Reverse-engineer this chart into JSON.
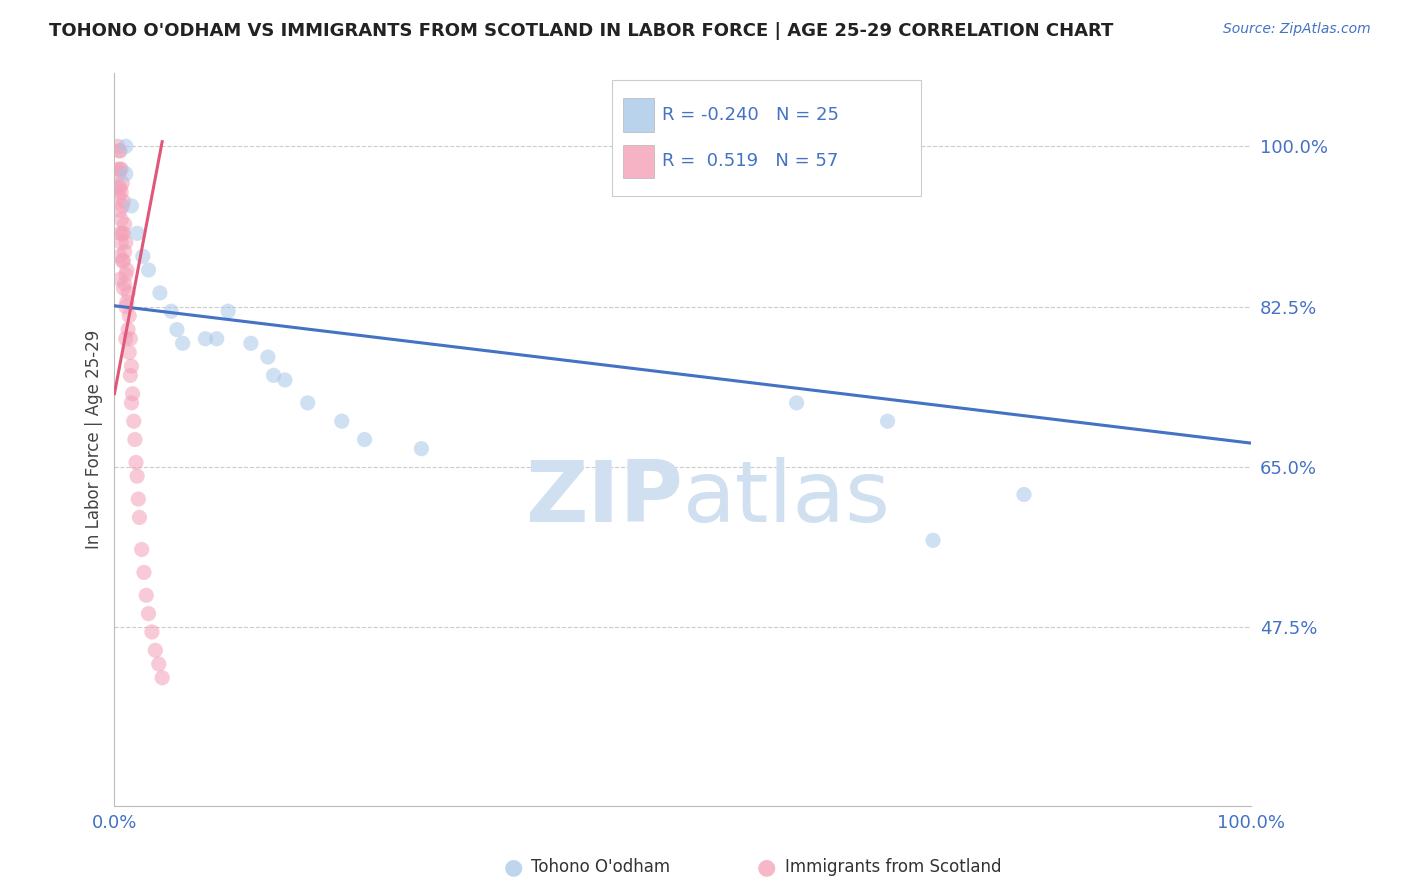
{
  "title": "TOHONO O'ODHAM VS IMMIGRANTS FROM SCOTLAND IN LABOR FORCE | AGE 25-29 CORRELATION CHART",
  "source_text": "Source: ZipAtlas.com",
  "ylabel": "In Labor Force | Age 25-29",
  "xlim": [
    0.0,
    1.0
  ],
  "ylim": [
    0.28,
    1.08
  ],
  "ytick_positions": [
    0.475,
    0.65,
    0.825,
    1.0
  ],
  "ytick_labels": [
    "47.5%",
    "65.0%",
    "82.5%",
    "100.0%"
  ],
  "xtick_positions": [
    0.0,
    0.1,
    0.2,
    0.3,
    0.4,
    0.5,
    0.6,
    0.7,
    0.8,
    0.9,
    1.0
  ],
  "xtick_labels": [
    "0.0%",
    "",
    "",
    "",
    "",
    "",
    "",
    "",
    "",
    "",
    "100.0%"
  ],
  "r_blue": -0.24,
  "n_blue": 25,
  "r_pink": 0.519,
  "n_pink": 57,
  "blue_color": "#a8c8e8",
  "pink_color": "#f4a0b8",
  "blue_line_color": "#4472c4",
  "pink_line_color": "#e05878",
  "watermark_color": "#d0e0f0",
  "grid_color": "#cccccc",
  "title_color": "#222222",
  "tick_color": "#4472c4",
  "blue_scatter_x": [
    0.01,
    0.01,
    0.015,
    0.02,
    0.025,
    0.03,
    0.04,
    0.05,
    0.055,
    0.06,
    0.08,
    0.09,
    0.1,
    0.12,
    0.135,
    0.14,
    0.15,
    0.17,
    0.2,
    0.22,
    0.27,
    0.6,
    0.68,
    0.8,
    0.72
  ],
  "blue_scatter_y": [
    1.0,
    0.97,
    0.935,
    0.905,
    0.88,
    0.865,
    0.84,
    0.82,
    0.8,
    0.785,
    0.79,
    0.79,
    0.82,
    0.785,
    0.77,
    0.75,
    0.745,
    0.72,
    0.7,
    0.68,
    0.67,
    0.72,
    0.7,
    0.62,
    0.57
  ],
  "pink_scatter_x": [
    0.003,
    0.003,
    0.003,
    0.004,
    0.004,
    0.004,
    0.005,
    0.005,
    0.005,
    0.005,
    0.005,
    0.005,
    0.005,
    0.006,
    0.006,
    0.006,
    0.006,
    0.007,
    0.007,
    0.007,
    0.007,
    0.008,
    0.008,
    0.008,
    0.008,
    0.009,
    0.009,
    0.009,
    0.01,
    0.01,
    0.01,
    0.01,
    0.011,
    0.011,
    0.012,
    0.012,
    0.013,
    0.013,
    0.014,
    0.014,
    0.015,
    0.015,
    0.016,
    0.017,
    0.018,
    0.019,
    0.02,
    0.021,
    0.022,
    0.024,
    0.026,
    0.028,
    0.03,
    0.033,
    0.036,
    0.039,
    0.042
  ],
  "pink_scatter_y": [
    1.0,
    0.975,
    0.955,
    0.995,
    0.97,
    0.945,
    0.995,
    0.975,
    0.955,
    0.93,
    0.905,
    0.88,
    0.855,
    0.975,
    0.95,
    0.92,
    0.895,
    0.96,
    0.935,
    0.905,
    0.875,
    0.94,
    0.905,
    0.875,
    0.845,
    0.915,
    0.885,
    0.85,
    0.895,
    0.86,
    0.825,
    0.79,
    0.865,
    0.83,
    0.84,
    0.8,
    0.815,
    0.775,
    0.79,
    0.75,
    0.76,
    0.72,
    0.73,
    0.7,
    0.68,
    0.655,
    0.64,
    0.615,
    0.595,
    0.56,
    0.535,
    0.51,
    0.49,
    0.47,
    0.45,
    0.435,
    0.42
  ],
  "blue_line_x": [
    0.0,
    1.0
  ],
  "blue_line_y": [
    0.826,
    0.676
  ],
  "pink_line_x": [
    0.0,
    0.042
  ],
  "pink_line_y": [
    0.73,
    1.005
  ],
  "marker_size": 120,
  "marker_alpha": 0.55
}
